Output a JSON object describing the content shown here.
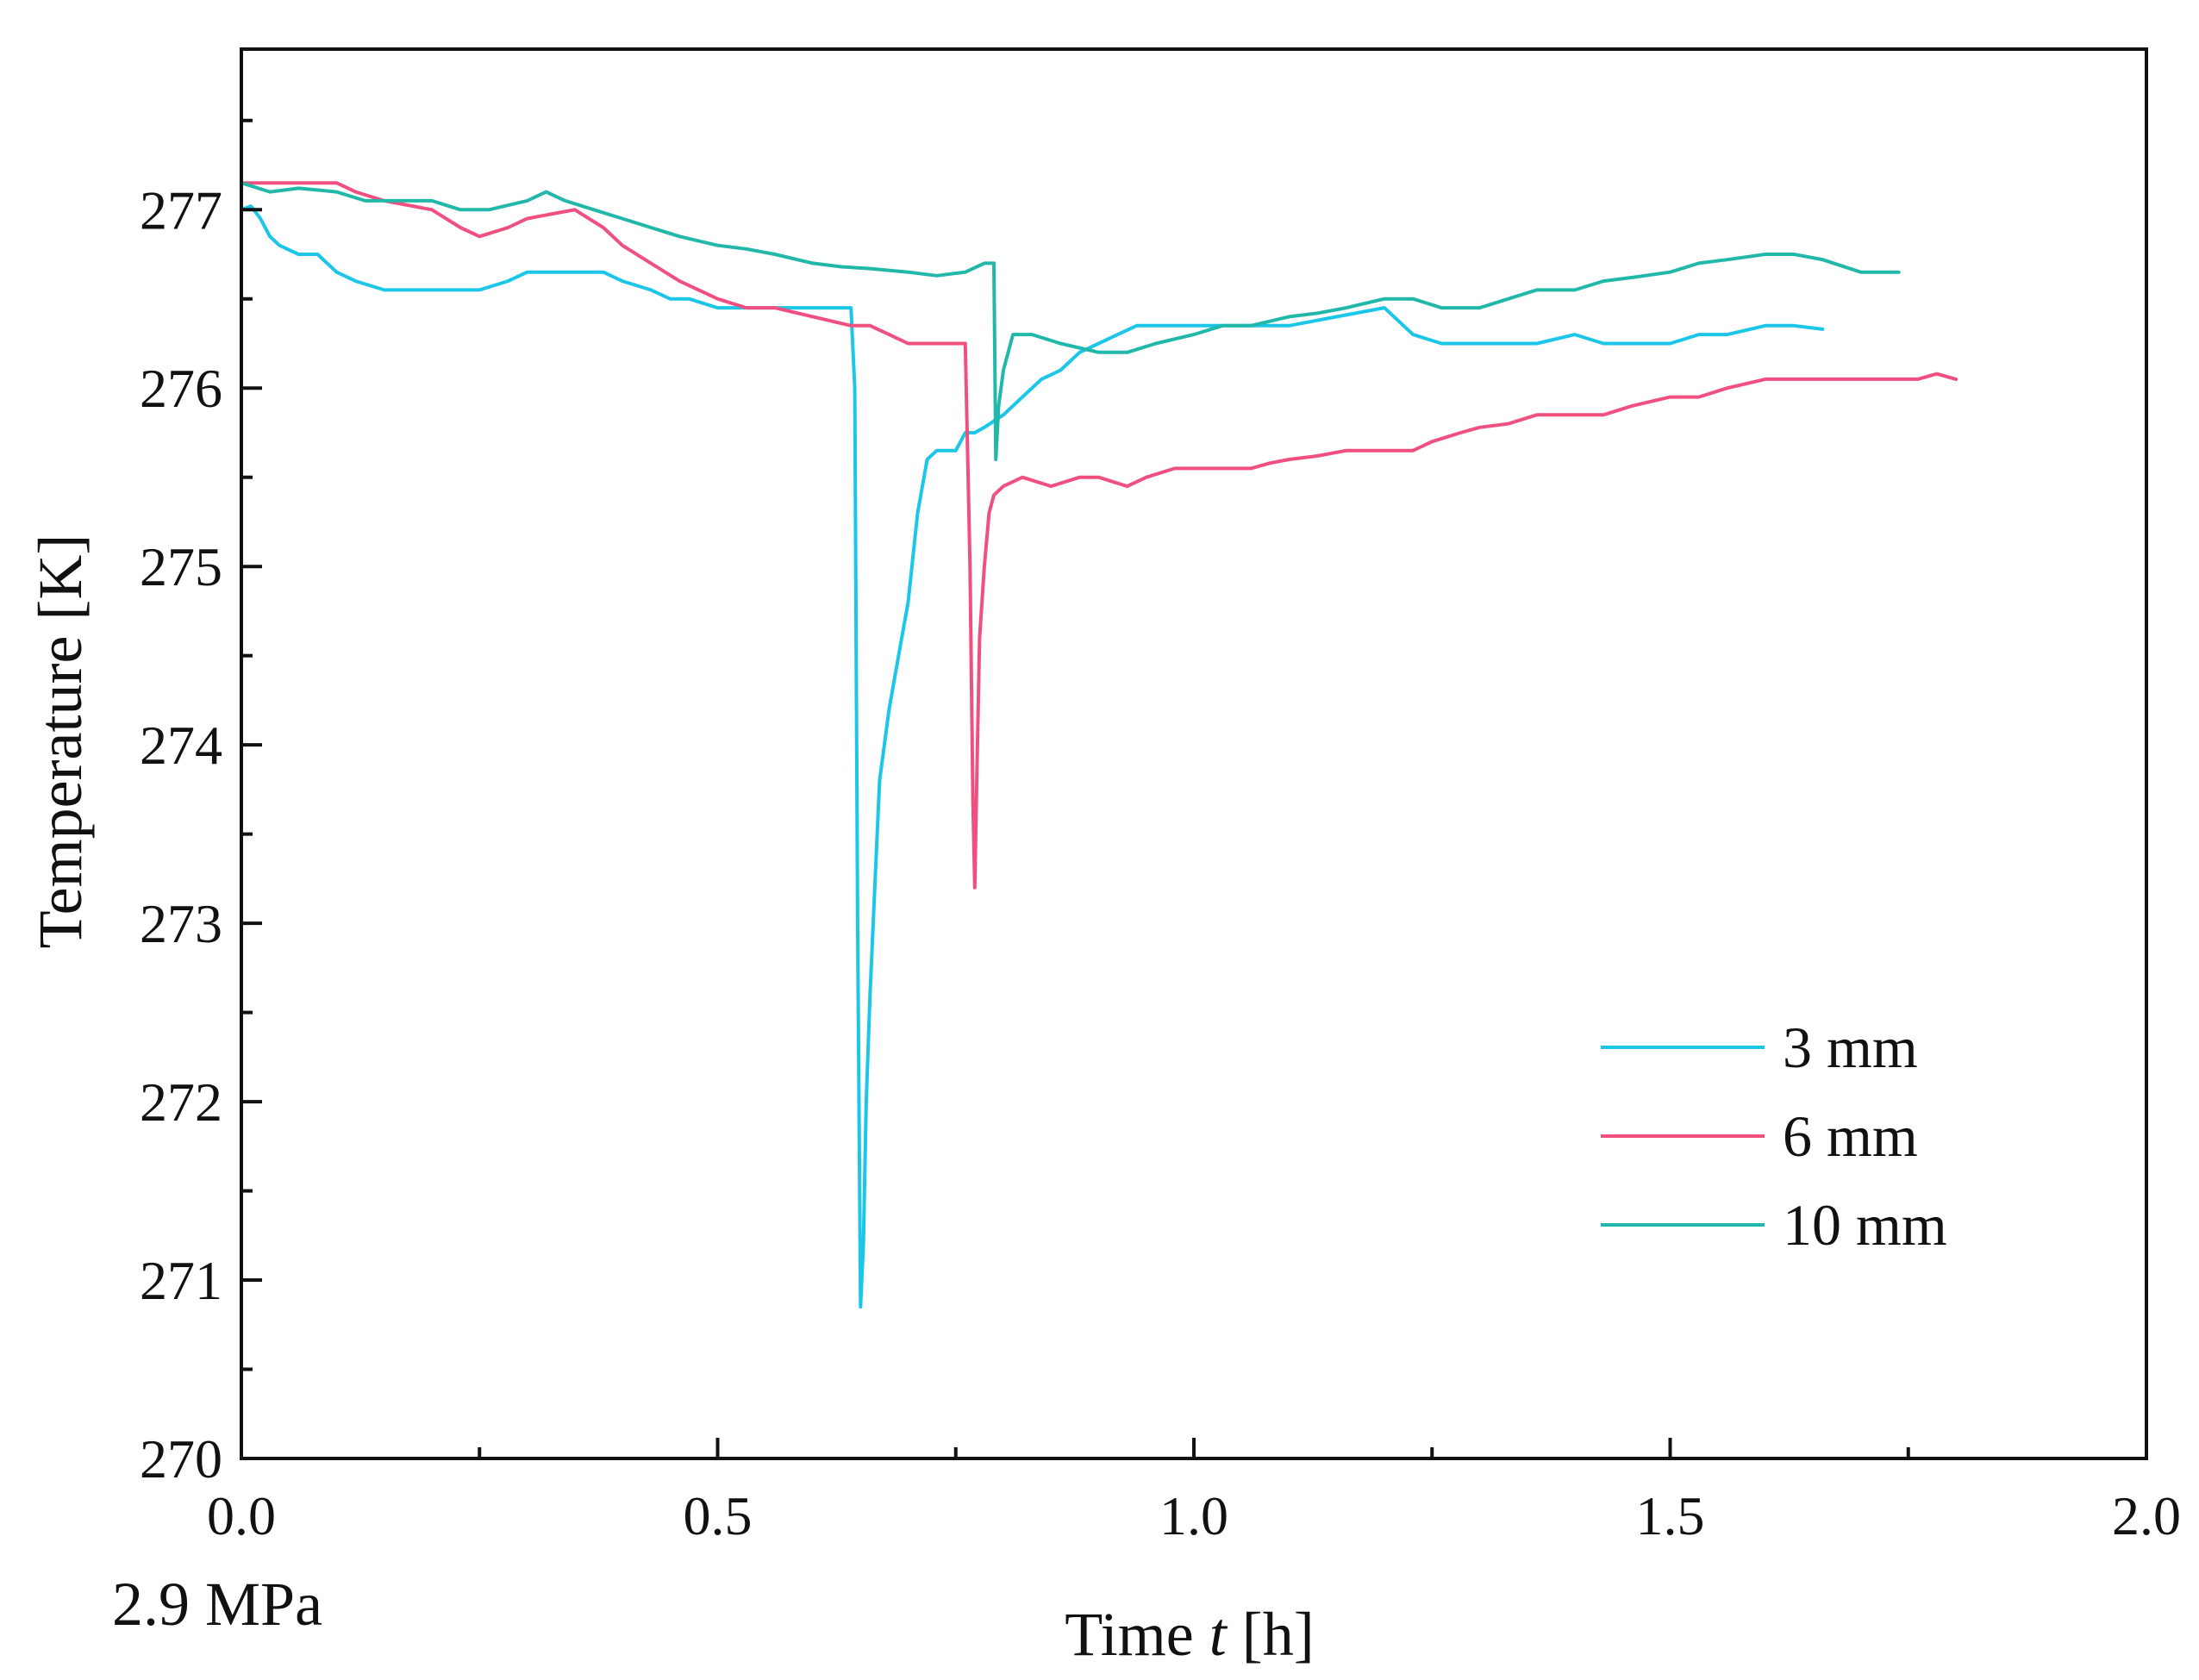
{
  "chart_data": {
    "type": "line",
    "title": "",
    "annotation": "2.9 MPa",
    "xlabel": "Time t [h]",
    "xlabel_parts": {
      "prefix": "Time ",
      "variable": "t",
      "suffix": " [h]"
    },
    "ylabel": "Temperature [K]",
    "xlim": [
      0.0,
      2.0
    ],
    "ylim": [
      270,
      277.9
    ],
    "xticks": [
      0.0,
      0.5,
      1.0,
      1.5,
      2.0
    ],
    "xtick_labels": [
      "0.0",
      "0.5",
      "1.0",
      "1.5",
      "2.0"
    ],
    "yticks": [
      270,
      271,
      272,
      273,
      274,
      275,
      276,
      277
    ],
    "ytick_labels": [
      "270",
      "271",
      "272",
      "273",
      "274",
      "275",
      "276",
      "277"
    ],
    "grid": false,
    "legend_position": "bottom-right",
    "series": [
      {
        "name": "3 mm",
        "color": "#1CC6E8",
        "x": [
          0.0,
          0.01,
          0.02,
          0.03,
          0.04,
          0.06,
          0.08,
          0.1,
          0.12,
          0.15,
          0.18,
          0.22,
          0.25,
          0.28,
          0.3,
          0.32,
          0.35,
          0.38,
          0.4,
          0.43,
          0.45,
          0.47,
          0.5,
          0.53,
          0.56,
          0.6,
          0.64,
          0.644,
          0.647,
          0.65,
          0.653,
          0.656,
          0.66,
          0.665,
          0.67,
          0.675,
          0.68,
          0.69,
          0.7,
          0.71,
          0.72,
          0.73,
          0.74,
          0.75,
          0.76,
          0.77,
          0.78,
          0.8,
          0.82,
          0.84,
          0.86,
          0.88,
          0.9,
          0.92,
          0.94,
          0.97,
          1.0,
          1.03,
          1.06,
          1.1,
          1.15,
          1.2,
          1.23,
          1.26,
          1.3,
          1.33,
          1.36,
          1.4,
          1.43,
          1.46,
          1.5,
          1.53,
          1.56,
          1.6,
          1.63,
          1.66
        ],
        "values": [
          277.0,
          277.02,
          276.95,
          276.85,
          276.8,
          276.75,
          276.75,
          276.65,
          276.6,
          276.55,
          276.55,
          276.55,
          276.55,
          276.6,
          276.65,
          276.65,
          276.65,
          276.65,
          276.6,
          276.55,
          276.5,
          276.5,
          276.45,
          276.45,
          276.45,
          276.45,
          276.45,
          276.0,
          273.0,
          270.85,
          271.2,
          272.0,
          272.6,
          273.2,
          273.8,
          274.0,
          274.2,
          274.5,
          274.8,
          275.3,
          275.6,
          275.65,
          275.65,
          275.65,
          275.75,
          275.75,
          275.78,
          275.85,
          275.95,
          276.05,
          276.1,
          276.2,
          276.25,
          276.3,
          276.35,
          276.35,
          276.35,
          276.35,
          276.35,
          276.35,
          276.4,
          276.45,
          276.3,
          276.25,
          276.25,
          276.25,
          276.25,
          276.3,
          276.25,
          276.25,
          276.25,
          276.3,
          276.3,
          276.35,
          276.35,
          276.33
        ]
      },
      {
        "name": "6 mm",
        "color": "#F0507F",
        "x": [
          0.0,
          0.05,
          0.1,
          0.12,
          0.15,
          0.2,
          0.23,
          0.25,
          0.28,
          0.3,
          0.33,
          0.35,
          0.38,
          0.4,
          0.43,
          0.46,
          0.5,
          0.53,
          0.56,
          0.6,
          0.64,
          0.66,
          0.68,
          0.7,
          0.73,
          0.76,
          0.765,
          0.768,
          0.77,
          0.772,
          0.775,
          0.78,
          0.785,
          0.79,
          0.8,
          0.82,
          0.85,
          0.88,
          0.9,
          0.93,
          0.95,
          0.98,
          1.0,
          1.03,
          1.06,
          1.08,
          1.1,
          1.13,
          1.16,
          1.2,
          1.23,
          1.25,
          1.28,
          1.3,
          1.33,
          1.36,
          1.4,
          1.43,
          1.46,
          1.5,
          1.53,
          1.56,
          1.6,
          1.63,
          1.66,
          1.7,
          1.73,
          1.76,
          1.78,
          1.8
        ],
        "values": [
          277.15,
          277.15,
          277.15,
          277.1,
          277.05,
          277.0,
          276.9,
          276.85,
          276.9,
          276.95,
          276.98,
          277.0,
          276.9,
          276.8,
          276.7,
          276.6,
          276.5,
          276.45,
          276.45,
          276.4,
          276.35,
          276.35,
          276.3,
          276.25,
          276.25,
          276.25,
          275.0,
          273.7,
          273.2,
          273.8,
          274.6,
          275.0,
          275.3,
          275.4,
          275.45,
          275.5,
          275.45,
          275.5,
          275.5,
          275.45,
          275.5,
          275.55,
          275.55,
          275.55,
          275.55,
          275.58,
          275.6,
          275.62,
          275.65,
          275.65,
          275.65,
          275.7,
          275.75,
          275.78,
          275.8,
          275.85,
          275.85,
          275.85,
          275.9,
          275.95,
          275.95,
          276.0,
          276.05,
          276.05,
          276.05,
          276.05,
          276.05,
          276.05,
          276.08,
          276.05
        ]
      },
      {
        "name": "10 mm",
        "color": "#22B8A9",
        "x": [
          0.0,
          0.03,
          0.06,
          0.1,
          0.13,
          0.16,
          0.2,
          0.23,
          0.26,
          0.3,
          0.32,
          0.34,
          0.37,
          0.4,
          0.43,
          0.46,
          0.5,
          0.53,
          0.56,
          0.6,
          0.63,
          0.66,
          0.7,
          0.73,
          0.76,
          0.78,
          0.79,
          0.792,
          0.795,
          0.8,
          0.81,
          0.83,
          0.86,
          0.9,
          0.93,
          0.96,
          1.0,
          1.03,
          1.06,
          1.1,
          1.13,
          1.16,
          1.2,
          1.23,
          1.26,
          1.3,
          1.33,
          1.36,
          1.4,
          1.43,
          1.46,
          1.5,
          1.53,
          1.56,
          1.6,
          1.63,
          1.66,
          1.7,
          1.74
        ],
        "values": [
          277.15,
          277.1,
          277.12,
          277.1,
          277.05,
          277.05,
          277.05,
          277.0,
          277.0,
          277.05,
          277.1,
          277.05,
          277.0,
          276.95,
          276.9,
          276.85,
          276.8,
          276.78,
          276.75,
          276.7,
          276.68,
          276.67,
          276.65,
          276.63,
          276.65,
          276.7,
          276.7,
          275.6,
          275.9,
          276.1,
          276.3,
          276.3,
          276.25,
          276.2,
          276.2,
          276.25,
          276.3,
          276.35,
          276.35,
          276.4,
          276.42,
          276.45,
          276.5,
          276.5,
          276.45,
          276.45,
          276.5,
          276.55,
          276.55,
          276.6,
          276.62,
          276.65,
          276.7,
          276.72,
          276.75,
          276.75,
          276.72,
          276.65,
          276.65
        ]
      }
    ]
  }
}
